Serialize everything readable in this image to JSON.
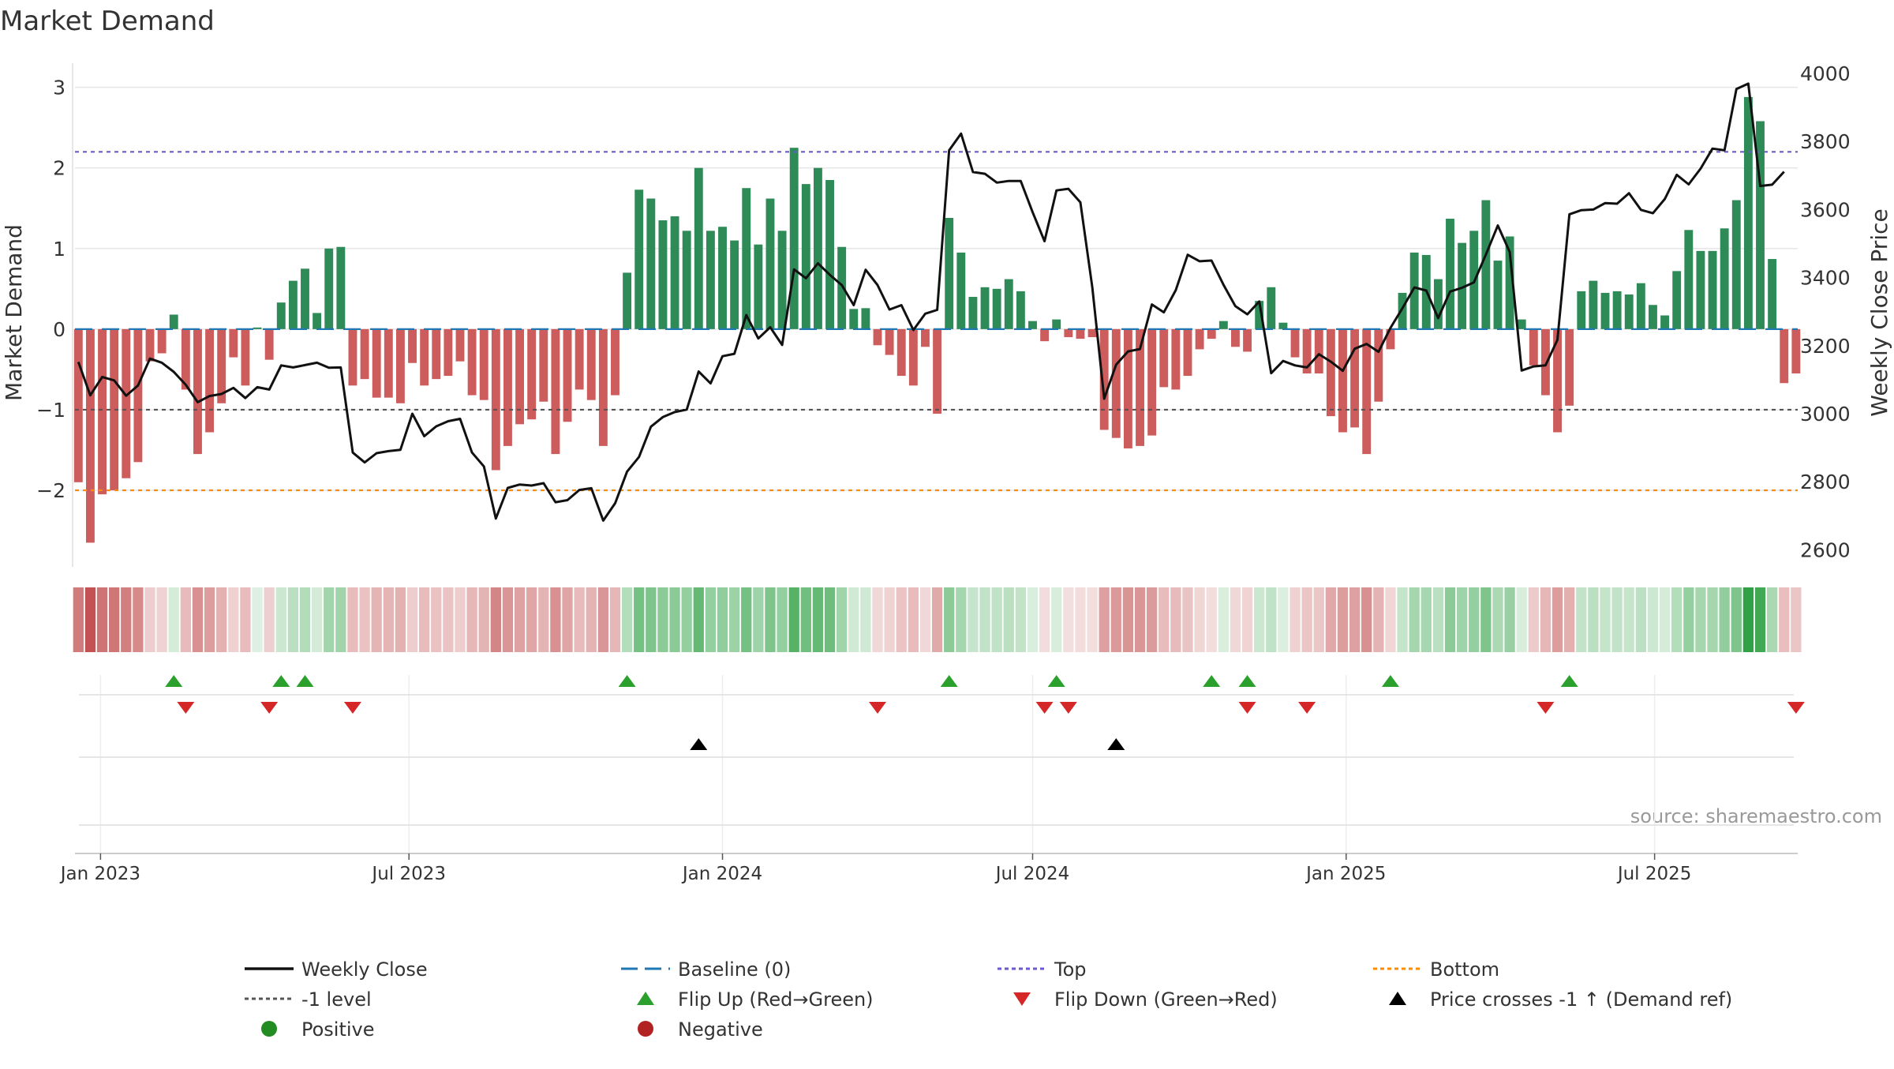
{
  "chart_data": {
    "type": "bar",
    "title": "Market Demand",
    "ylabel": "Market Demand",
    "y2label": "Weekly Close Price",
    "ylim": [
      -2.95,
      3.3
    ],
    "y2lim": [
      2550,
      4030
    ],
    "yticks": [
      3,
      2,
      1,
      0,
      -1,
      -2
    ],
    "yticklabels": [
      "3",
      "2",
      "1",
      "0",
      "−1",
      "−2"
    ],
    "y2ticks": [
      4000,
      3800,
      3600,
      3400,
      3200,
      3000,
      2800,
      2600
    ],
    "y2ticklabels": [
      "4000",
      "3800",
      "3600",
      "3400",
      "3200",
      "3000",
      "2800",
      "2600"
    ],
    "xlim": [
      "2022-12-17",
      "2025-09-23"
    ],
    "xticks": [
      "2023-01-01",
      "2023-07-01",
      "2024-01-01",
      "2024-07-01",
      "2025-01-01",
      "2025-07-01"
    ],
    "xticklabels": [
      "Jan 2023",
      "Jul 2023",
      "Jan 2024",
      "Jul 2024",
      "Jan 2025",
      "Jul 2025"
    ],
    "series_start": "2022-12-19",
    "series_step_days": 7,
    "demand": [
      -1.9,
      -2.65,
      -2.05,
      -2.0,
      -1.85,
      -1.65,
      -0.4,
      -0.3,
      0.18,
      -0.75,
      -1.55,
      -1.28,
      -0.92,
      -0.35,
      -0.7,
      0.02,
      -0.38,
      0.33,
      0.6,
      0.75,
      0.2,
      1.0,
      1.02,
      -0.7,
      -0.62,
      -0.85,
      -0.85,
      -0.92,
      -0.42,
      -0.7,
      -0.62,
      -0.58,
      -0.4,
      -0.82,
      -0.88,
      -1.75,
      -1.45,
      -1.18,
      -1.12,
      -0.9,
      -1.55,
      -1.15,
      -0.75,
      -0.88,
      -1.45,
      -0.82,
      0.7,
      1.73,
      1.62,
      1.35,
      1.4,
      1.22,
      2.0,
      1.22,
      1.27,
      1.1,
      1.75,
      1.05,
      1.62,
      1.22,
      2.25,
      1.8,
      2.0,
      1.85,
      1.02,
      0.25,
      0.26,
      -0.2,
      -0.32,
      -0.58,
      -0.7,
      -0.22,
      -1.05,
      1.38,
      0.95,
      0.4,
      0.52,
      0.5,
      0.62,
      0.47,
      0.1,
      -0.15,
      0.12,
      -0.1,
      -0.12,
      -0.1,
      -1.25,
      -1.35,
      -1.48,
      -1.45,
      -1.32,
      -0.72,
      -0.75,
      -0.58,
      -0.25,
      -0.12,
      0.1,
      -0.22,
      -0.28,
      0.35,
      0.52,
      0.08,
      -0.35,
      -0.55,
      -0.55,
      -1.08,
      -1.28,
      -1.22,
      -1.55,
      -0.9,
      -0.25,
      0.45,
      0.95,
      0.92,
      0.62,
      1.37,
      1.07,
      1.22,
      1.6,
      0.85,
      1.15,
      0.12,
      -0.45,
      -0.82,
      -1.28,
      -0.95,
      0.47,
      0.6,
      0.45,
      0.47,
      0.43,
      0.57,
      0.3,
      0.17,
      0.72,
      1.23,
      0.97,
      0.97,
      1.25,
      1.6,
      2.88,
      2.58,
      0.87,
      -0.67,
      -0.55
    ],
    "close": [
      3152,
      3054,
      3108,
      3098,
      3053,
      3083,
      3162,
      3150,
      3123,
      3085,
      3034,
      3052,
      3058,
      3076,
      3046,
      3078,
      3071,
      3142,
      3136,
      3143,
      3150,
      3135,
      3136,
      2886,
      2857,
      2884,
      2890,
      2894,
      3000,
      2934,
      2963,
      2978,
      2985,
      2886,
      2845,
      2692,
      2782,
      2792,
      2789,
      2796,
      2740,
      2746,
      2776,
      2781,
      2686,
      2737,
      2830,
      2873,
      2962,
      2990,
      3005,
      3012,
      3124,
      3089,
      3169,
      3176,
      3290,
      3221,
      3254,
      3202,
      3424,
      3398,
      3442,
      3408,
      3378,
      3319,
      3423,
      3378,
      3306,
      3319,
      3246,
      3294,
      3305,
      3774,
      3823,
      3710,
      3705,
      3679,
      3684,
      3684,
      3592,
      3507,
      3656,
      3661,
      3621,
      3372,
      3044,
      3144,
      3183,
      3190,
      3321,
      3298,
      3363,
      3467,
      3448,
      3450,
      3379,
      3316,
      3292,
      3330,
      3119,
      3155,
      3142,
      3136,
      3175,
      3153,
      3126,
      3191,
      3205,
      3182,
      3252,
      3310,
      3371,
      3362,
      3281,
      3359,
      3370,
      3386,
      3468,
      3553,
      3475,
      3127,
      3139,
      3142,
      3217,
      3586,
      3598,
      3600,
      3619,
      3617,
      3648,
      3599,
      3589,
      3631,
      3702,
      3674,
      3720,
      3779,
      3774,
      3954,
      3970,
      3669,
      3673,
      3711
    ],
    "demand_colors": {
      "positive": "#2E8B57",
      "negative": "#CD5C5C"
    },
    "close_color": "#111111",
    "baseline": {
      "value": 0,
      "label": "Baseline (0)",
      "color": "#1f77b4"
    },
    "top": {
      "value": 2.2,
      "label": "Top",
      "color": "#6A5ACD"
    },
    "bottom": {
      "value": -2.0,
      "label": "Bottom",
      "color": "#FF8C00"
    },
    "minus1": {
      "value": -1.0,
      "label": "-1 level",
      "color": "#555555"
    },
    "heat_strip": {
      "note": "color intensity mirrors market demand per week"
    },
    "flip_up_weeks": [
      8,
      17,
      19,
      46,
      73,
      82,
      95,
      98,
      110,
      125
    ],
    "flip_down_weeks": [
      9,
      16,
      23,
      67,
      81,
      83,
      98,
      103,
      123,
      144
    ],
    "price_cross_weeks": [
      52,
      87
    ],
    "source": "source: sharemaestro.com",
    "legend": [
      {
        "key": "weekly-close",
        "label": "Weekly Close",
        "marker": "line",
        "color": "#111111"
      },
      {
        "key": "baseline",
        "label": "Baseline (0)",
        "marker": "dashed-line",
        "color": "#1f77b4"
      },
      {
        "key": "top",
        "label": "Top",
        "marker": "dotted-line",
        "color": "#6A5ACD"
      },
      {
        "key": "bottom",
        "label": "Bottom",
        "marker": "dotted-line",
        "color": "#FF8C00"
      },
      {
        "key": "minus1",
        "label": "-1 level",
        "marker": "dotted-line",
        "color": "#555555"
      },
      {
        "key": "flip-up",
        "label": "Flip Up (Red→Green)",
        "marker": "triangle-up",
        "color": "#2CA02C"
      },
      {
        "key": "flip-down",
        "label": "Flip Down (Green→Red)",
        "marker": "triangle-down",
        "color": "#D62728"
      },
      {
        "key": "price-cross",
        "label": "Price crosses -1 ↑ (Demand ref)",
        "marker": "triangle-up",
        "color": "#000000"
      },
      {
        "key": "positive",
        "label": "Positive",
        "marker": "circle",
        "color": "#228B22"
      },
      {
        "key": "negative",
        "label": "Negative",
        "marker": "circle",
        "color": "#B22222"
      }
    ]
  }
}
